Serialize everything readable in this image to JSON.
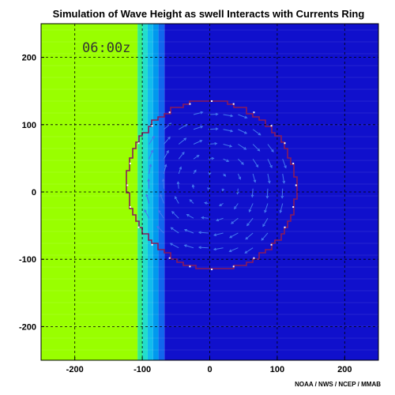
{
  "chart_data": {
    "type": "heatmap",
    "title": "Simulation of Wave Height as swell Interacts with Currents Ring",
    "time_label": "06:00z",
    "credit": "NOAA / NWS / NCEP / MMAB",
    "xlabel": "",
    "ylabel": "",
    "xlim": [
      -250,
      250
    ],
    "ylim": [
      -250,
      250
    ],
    "x_ticks": [
      -200,
      -100,
      0,
      100,
      200
    ],
    "y_ticks": [
      200,
      100,
      0,
      -100,
      -200
    ],
    "x_tick_labels": [
      "-200",
      "-100",
      "0",
      "100",
      "200"
    ],
    "y_tick_labels": [
      "200",
      "100",
      "0",
      "-100",
      "-200"
    ],
    "grid": true,
    "bands": [
      {
        "x_start": -250,
        "x_end": -107,
        "color": "#99ff00"
      },
      {
        "x_start": -107,
        "x_end": -100,
        "color": "#33ee88"
      },
      {
        "x_start": -100,
        "x_end": -92,
        "color": "#22ddcc"
      },
      {
        "x_start": -92,
        "x_end": -84,
        "color": "#11bbee"
      },
      {
        "x_start": -84,
        "x_end": -76,
        "color": "#0099ee"
      },
      {
        "x_start": -76,
        "x_end": -67,
        "color": "#1166ee"
      },
      {
        "x_start": -67,
        "x_end": 250,
        "color": "#1010cc"
      }
    ],
    "ring": {
      "center": [
        3,
        10
      ],
      "radius": 125,
      "outline_color": "#8b1a5a"
    },
    "vector_color": "#4477ee"
  }
}
